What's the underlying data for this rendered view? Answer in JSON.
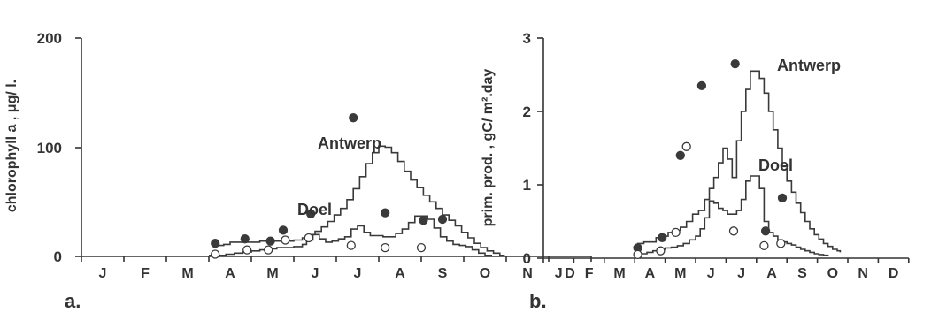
{
  "chart_data": [
    {
      "type": "line",
      "panel_label": "a.",
      "ylabel": "chlorophyll a , μg/ l.",
      "ylim": [
        0,
        200
      ],
      "yticks": [
        "0",
        "100",
        "200"
      ],
      "months": [
        "J",
        "F",
        "M",
        "A",
        "M",
        "J",
        "J",
        "A",
        "S",
        "O",
        "N",
        "D"
      ],
      "annotations": [
        "Antwerp",
        "Doel"
      ],
      "series": [
        {
          "style": "line",
          "x": [
            3.2,
            3.35,
            3.5,
            3.65,
            3.8,
            4.0,
            4.2,
            4.4,
            4.6,
            4.8,
            5.0,
            5.2,
            5.35,
            5.5,
            5.65,
            5.8,
            5.95,
            6.1,
            6.25,
            6.4,
            6.55,
            6.7,
            6.85,
            7.0,
            7.15,
            7.3,
            7.45,
            7.6,
            7.75,
            7.9,
            8.05,
            8.2,
            8.35,
            8.5,
            8.65,
            8.8,
            8.95,
            9.1,
            9.25,
            9.4,
            9.55,
            9.7,
            9.85,
            9.95
          ],
          "y": [
            10,
            11,
            13,
            13,
            13,
            13,
            14,
            14,
            14,
            14,
            15,
            17,
            20,
            23,
            27,
            32,
            38,
            44,
            52,
            62,
            73,
            85,
            95,
            101,
            100,
            95,
            87,
            78,
            70,
            63,
            56,
            50,
            44,
            38,
            33,
            28,
            22,
            17,
            12,
            8,
            5,
            3,
            1,
            0
          ]
        },
        {
          "style": "line",
          "x": [
            3.0,
            3.2,
            3.4,
            3.6,
            3.8,
            4.0,
            4.2,
            4.4,
            4.6,
            4.8,
            5.0,
            5.2,
            5.3,
            5.45,
            5.6,
            5.75,
            5.9,
            6.05,
            6.2,
            6.35,
            6.5,
            6.65,
            6.8,
            6.95,
            7.1,
            7.25,
            7.4,
            7.55,
            7.7,
            7.85,
            8.0,
            8.15,
            8.3,
            8.45,
            8.6,
            8.75,
            8.9,
            9.05,
            9.2,
            9.35,
            9.5,
            9.65
          ],
          "y": [
            1,
            1,
            2,
            3,
            4,
            5,
            6,
            7,
            8,
            8,
            9,
            11,
            15,
            20,
            16,
            13,
            14,
            16,
            18,
            25,
            28,
            22,
            19,
            19,
            18,
            18,
            21,
            25,
            31,
            37,
            37,
            34,
            26,
            18,
            14,
            11,
            10,
            9,
            6,
            3,
            1,
            0
          ]
        },
        {
          "style": "filled-markers",
          "x": [
            3.15,
            3.85,
            4.45,
            4.75,
            5.4,
            6.4,
            7.15,
            8.05,
            8.5
          ],
          "y": [
            12,
            16,
            14,
            24,
            39,
            127,
            40,
            33,
            34
          ]
        },
        {
          "style": "open-markers",
          "x": [
            3.15,
            3.9,
            4.4,
            4.8,
            5.35,
            6.35,
            7.15,
            8.0
          ],
          "y": [
            2,
            6,
            6,
            15,
            17,
            10,
            8,
            8
          ]
        }
      ]
    },
    {
      "type": "line",
      "panel_label": "b.",
      "ylabel": "prim. prod. ,  gC/ m².day",
      "ylim": [
        0,
        3
      ],
      "yticks": [
        "0",
        "1",
        "2",
        "3"
      ],
      "months": [
        "J",
        "F",
        "M",
        "A",
        "M",
        "J",
        "J",
        "A",
        "S",
        "O",
        "N",
        "D"
      ],
      "annotations": [
        "Antwerp",
        "Doel"
      ],
      "series": [
        {
          "style": "line",
          "x": [
            2.95,
            3.1,
            3.3,
            3.5,
            3.7,
            3.9,
            4.1,
            4.3,
            4.5,
            4.7,
            4.9,
            5.1,
            5.3,
            5.45,
            5.6,
            5.75,
            5.9,
            6.05,
            6.2,
            6.35,
            6.5,
            6.65,
            6.8,
            6.95,
            7.1,
            7.25,
            7.4,
            7.55,
            7.7,
            7.85,
            8.0,
            8.15,
            8.3,
            8.45,
            8.6,
            8.75,
            8.9,
            9.05,
            9.2,
            9.35,
            9.5,
            9.65,
            9.75
          ],
          "y": [
            0.15,
            0.2,
            0.22,
            0.22,
            0.28,
            0.3,
            0.35,
            0.38,
            0.42,
            0.5,
            0.6,
            0.65,
            0.8,
            0.95,
            1.1,
            1.3,
            1.5,
            1.35,
            1.1,
            1.6,
            2.0,
            2.3,
            2.55,
            2.55,
            2.45,
            2.25,
            2.0,
            1.75,
            1.5,
            1.25,
            1.05,
            0.9,
            0.75,
            0.62,
            0.5,
            0.4,
            0.32,
            0.26,
            0.2,
            0.16,
            0.12,
            0.1,
            0.08
          ]
        },
        {
          "style": "line",
          "x": [
            3.0,
            3.2,
            3.4,
            3.6,
            3.8,
            4.0,
            4.2,
            4.4,
            4.6,
            4.8,
            5.0,
            5.15,
            5.3,
            5.45,
            5.6,
            5.75,
            5.9,
            6.05,
            6.2,
            6.35,
            6.5,
            6.65,
            6.8,
            6.95,
            7.1,
            7.25,
            7.4,
            7.55,
            7.7,
            7.85,
            8.0,
            8.15,
            8.3,
            8.45,
            8.6,
            8.75,
            8.9,
            9.05,
            9.2,
            9.35
          ],
          "y": [
            0.05,
            0.06,
            0.08,
            0.1,
            0.12,
            0.14,
            0.15,
            0.17,
            0.2,
            0.25,
            0.3,
            0.4,
            0.55,
            0.78,
            0.75,
            0.68,
            0.65,
            0.6,
            0.6,
            0.65,
            0.8,
            1.05,
            1.12,
            1.12,
            0.95,
            0.5,
            0.35,
            0.3,
            0.25,
            0.22,
            0.2,
            0.18,
            0.15,
            0.12,
            0.1,
            0.08,
            0.06,
            0.05,
            0.04,
            0.03
          ]
        },
        {
          "style": "filled-markers",
          "x": [
            3.1,
            3.9,
            4.5,
            5.2,
            6.3,
            7.3,
            7.85
          ],
          "y": [
            0.14,
            0.28,
            1.4,
            2.35,
            2.65,
            0.37,
            0.82
          ]
        },
        {
          "style": "open-markers",
          "x": [
            3.1,
            3.85,
            4.35,
            4.7,
            6.25,
            7.25,
            7.8
          ],
          "y": [
            0.05,
            0.1,
            0.35,
            1.52,
            0.37,
            0.17,
            0.2
          ]
        }
      ]
    }
  ]
}
